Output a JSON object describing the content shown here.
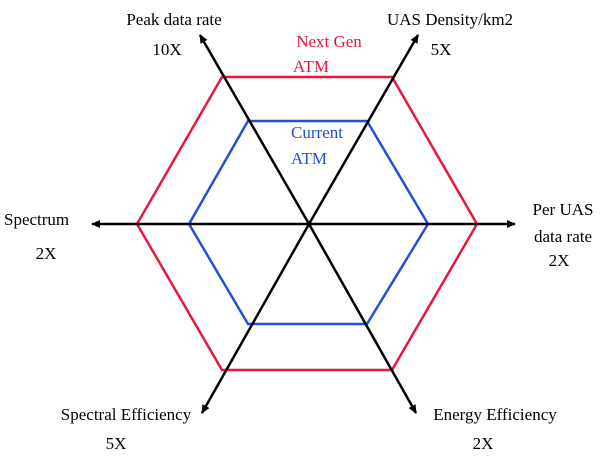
{
  "axes": [
    {
      "name": "Peak data rate",
      "factor": "10X"
    },
    {
      "name": "UAS Density/km2",
      "factor": "5X"
    },
    {
      "name": "Per UAS",
      "name_line2": "data rate",
      "factor": "2X"
    },
    {
      "name": "Energy Efficiency",
      "factor": "2X"
    },
    {
      "name": "Spectral Efficiency",
      "factor": "5X"
    },
    {
      "name": "Spectrum",
      "factor": "2X"
    }
  ],
  "next_gen": {
    "line1": "Next Gen",
    "line2": "ATM",
    "color": "#e8173f"
  },
  "current": {
    "line1": "Current",
    "line2": "ATM",
    "color": "#2450d8"
  },
  "axis_color": "#000000"
}
